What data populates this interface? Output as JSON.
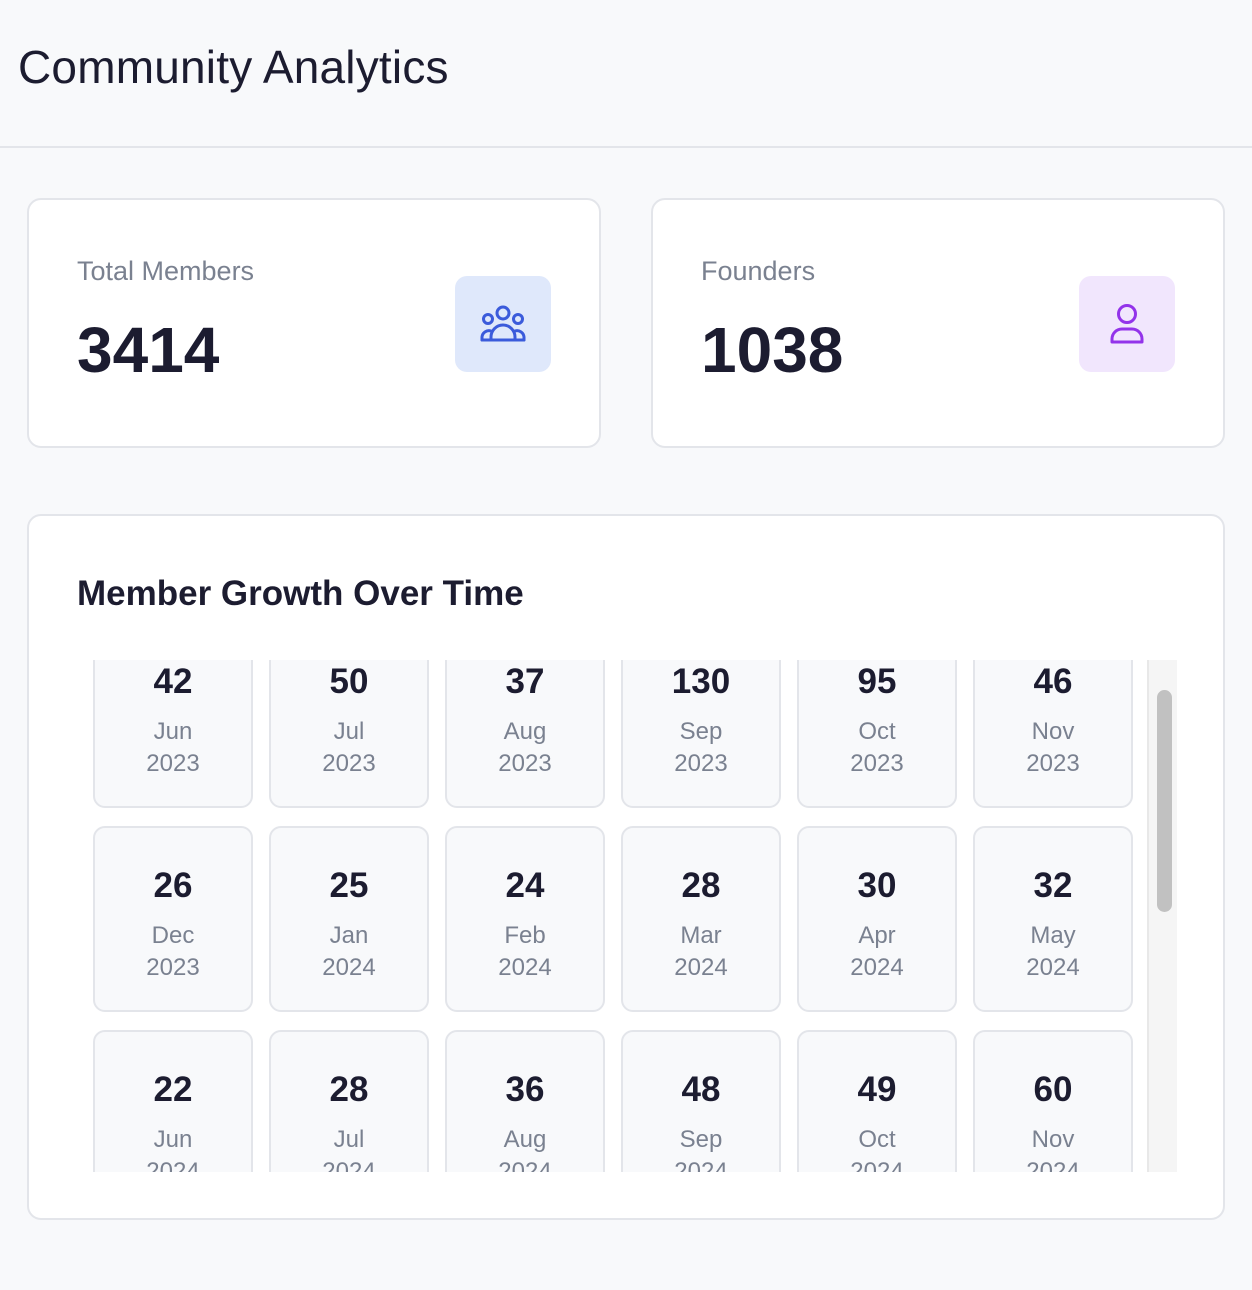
{
  "header": {
    "title": "Community Analytics"
  },
  "stats": {
    "members": {
      "label": "Total Members",
      "value": "3414",
      "icon": "users-group-icon",
      "color": "#3b5bdb"
    },
    "founders": {
      "label": "Founders",
      "value": "1038",
      "icon": "user-icon",
      "color": "#9333ea"
    }
  },
  "growth": {
    "title": "Member Growth Over Time",
    "months": [
      {
        "count": "42",
        "month": "Jun",
        "year": "2023"
      },
      {
        "count": "50",
        "month": "Jul",
        "year": "2023"
      },
      {
        "count": "37",
        "month": "Aug",
        "year": "2023"
      },
      {
        "count": "130",
        "month": "Sep",
        "year": "2023"
      },
      {
        "count": "95",
        "month": "Oct",
        "year": "2023"
      },
      {
        "count": "46",
        "month": "Nov",
        "year": "2023"
      },
      {
        "count": "26",
        "month": "Dec",
        "year": "2023"
      },
      {
        "count": "25",
        "month": "Jan",
        "year": "2024"
      },
      {
        "count": "24",
        "month": "Feb",
        "year": "2024"
      },
      {
        "count": "28",
        "month": "Mar",
        "year": "2024"
      },
      {
        "count": "30",
        "month": "Apr",
        "year": "2024"
      },
      {
        "count": "32",
        "month": "May",
        "year": "2024"
      },
      {
        "count": "22",
        "month": "Jun",
        "year": "2024"
      },
      {
        "count": "28",
        "month": "Jul",
        "year": "2024"
      },
      {
        "count": "36",
        "month": "Aug",
        "year": "2024"
      },
      {
        "count": "48",
        "month": "Sep",
        "year": "2024"
      },
      {
        "count": "49",
        "month": "Oct",
        "year": "2024"
      },
      {
        "count": "60",
        "month": "Nov",
        "year": "2024"
      }
    ]
  }
}
